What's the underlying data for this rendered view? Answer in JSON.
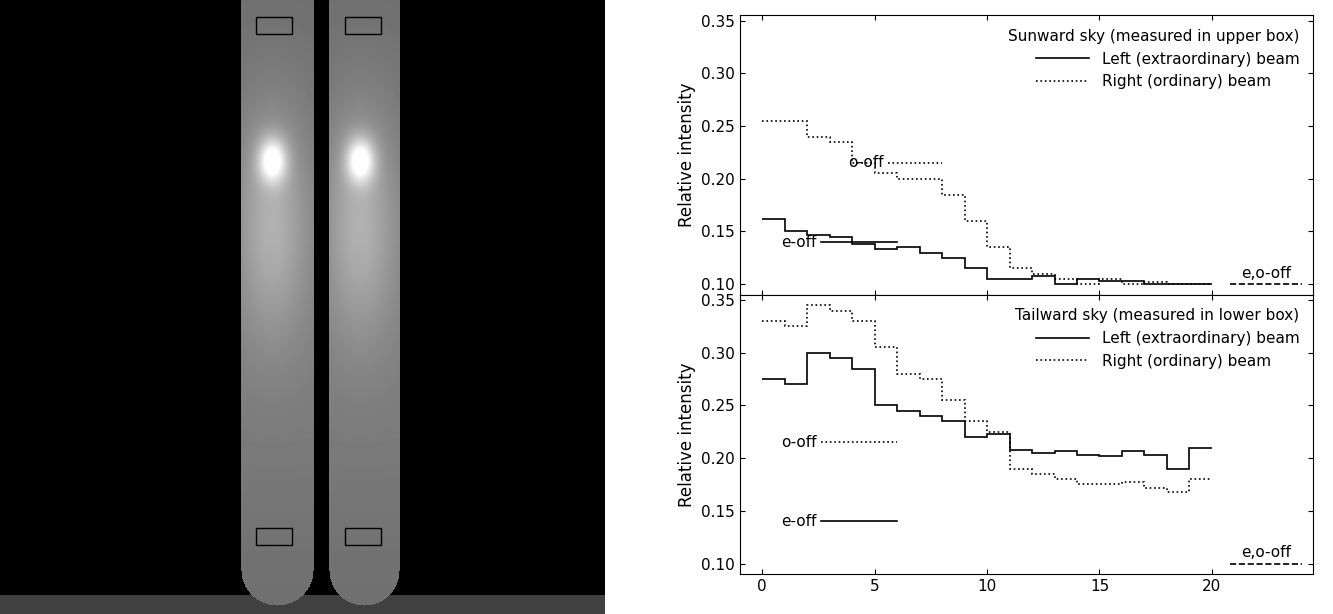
{
  "chart_data": [
    {
      "type": "step",
      "title": "Sunward sky (measured in upper box)",
      "y_label": "Relative intensity",
      "bins": [
        0,
        1,
        2,
        3,
        4,
        5,
        6,
        7,
        8,
        9,
        10,
        11,
        12,
        13,
        14,
        15,
        16,
        17,
        18,
        19,
        20
      ],
      "series": [
        {
          "name": "Left (extraordinary) beam",
          "color": "#000000",
          "line_style": "solid",
          "values": [
            0.162,
            0.15,
            0.147,
            0.145,
            0.138,
            0.133,
            0.135,
            0.13,
            0.125,
            0.115,
            0.105,
            0.105,
            0.108,
            0.1,
            0.105,
            0.103,
            0.103,
            0.1,
            0.1,
            0.1
          ]
        },
        {
          "name": "Right (ordinary) beam",
          "color": "#000000",
          "line_style": "dotted",
          "values": [
            0.255,
            0.255,
            0.24,
            0.235,
            0.215,
            0.205,
            0.2,
            0.2,
            0.185,
            0.16,
            0.135,
            0.115,
            0.11,
            0.105,
            0.1,
            0.105,
            0.1,
            0.102,
            0.1,
            0.1
          ]
        }
      ],
      "levels": [
        {
          "label": "e-off",
          "value": 0.14,
          "x": [
            2.6,
            6
          ],
          "line_style": "solid"
        },
        {
          "label": "o-off",
          "value": 0.215,
          "x": [
            5.6,
            8
          ],
          "line_style": "dotted"
        },
        {
          "label": "e,o-off",
          "value": 0.1,
          "x": [
            20.8,
            24
          ],
          "line_style": "dashed"
        }
      ],
      "xlim": [
        -1,
        24.5
      ],
      "xticks": [
        0,
        5,
        10,
        15,
        20
      ],
      "ylim": [
        0.09,
        0.355
      ],
      "yticks": [
        {
          "value": 0.1,
          "label": "0.10"
        },
        {
          "value": 0.15,
          "label": "0.15"
        },
        {
          "value": 0.2,
          "label": "0.20"
        },
        {
          "value": 0.25,
          "label": "0.25"
        },
        {
          "value": 0.3,
          "label": "0.30"
        },
        {
          "value": 0.35,
          "label": "0.35"
        }
      ],
      "legend": "upper right",
      "tick_labels": "y"
    },
    {
      "type": "step",
      "title": "Tailward sky (measured in lower box)",
      "y_label": "Relative intensity",
      "bins": [
        0,
        1,
        2,
        3,
        4,
        5,
        6,
        7,
        8,
        9,
        10,
        11,
        12,
        13,
        14,
        15,
        16,
        17,
        18,
        19,
        20
      ],
      "series": [
        {
          "name": "Left (extraordinary) beam",
          "color": "#000000",
          "line_style": "solid",
          "values": [
            0.275,
            0.27,
            0.3,
            0.295,
            0.285,
            0.25,
            0.245,
            0.24,
            0.235,
            0.22,
            0.223,
            0.208,
            0.205,
            0.207,
            0.203,
            0.202,
            0.207,
            0.203,
            0.19,
            0.21
          ]
        },
        {
          "name": "Right (ordinary) beam",
          "color": "#000000",
          "line_style": "dotted",
          "values": [
            0.33,
            0.325,
            0.345,
            0.34,
            0.33,
            0.305,
            0.28,
            0.275,
            0.255,
            0.235,
            0.225,
            0.19,
            0.185,
            0.18,
            0.175,
            0.175,
            0.177,
            0.172,
            0.168,
            0.18
          ]
        }
      ],
      "levels": [
        {
          "label": "o-off",
          "value": 0.215,
          "x": [
            2.6,
            6
          ],
          "line_style": "dotted"
        },
        {
          "label": "e-off",
          "value": 0.14,
          "x": [
            2.6,
            6
          ],
          "line_style": "solid"
        },
        {
          "label": "e,o-off",
          "value": 0.1,
          "x": [
            20.8,
            24
          ],
          "line_style": "dashed"
        }
      ],
      "xlim": [
        -1,
        24.5
      ],
      "xticks": [
        0,
        5,
        10,
        15,
        20
      ],
      "ylim": [
        0.09,
        0.355
      ],
      "yticks": [
        {
          "value": 0.1,
          "label": "0.10"
        },
        {
          "value": 0.15,
          "label": "0.15"
        },
        {
          "value": 0.2,
          "label": "0.20"
        },
        {
          "value": 0.25,
          "label": "0.25"
        },
        {
          "value": 0.3,
          "label": "0.30"
        },
        {
          "value": 0.35,
          "label": "0.35"
        }
      ],
      "legend": "upper right"
    }
  ]
}
